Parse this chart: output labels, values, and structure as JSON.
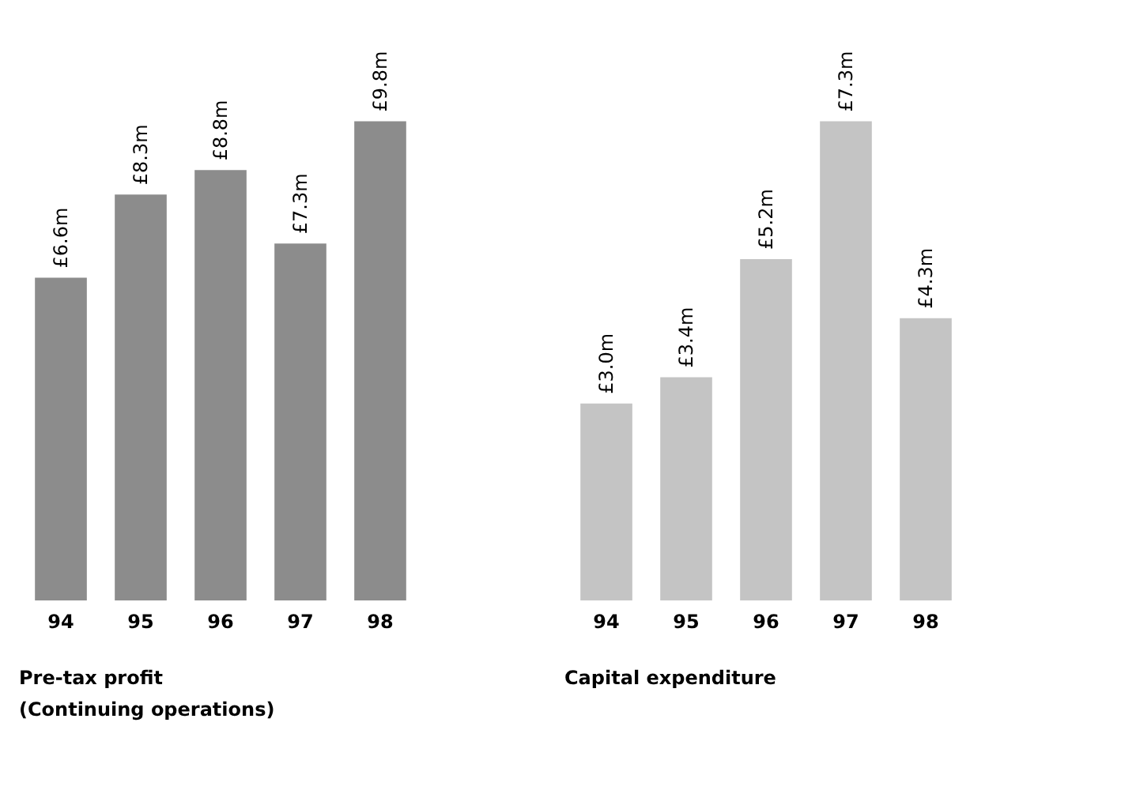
{
  "chart_data": [
    {
      "type": "bar",
      "title": "Pre-tax profit",
      "subtitle": "(Continuing operations)",
      "categories": [
        "94",
        "95",
        "96",
        "97",
        "98"
      ],
      "values": [
        6.6,
        8.3,
        8.8,
        7.3,
        9.8
      ],
      "value_labels": [
        "£6.6m",
        "£8.3m",
        "£8.8m",
        "£7.3m",
        "£9.8m"
      ],
      "color": "#8c8c8c"
    },
    {
      "type": "bar",
      "title": "Capital expenditure",
      "categories": [
        "94",
        "95",
        "96",
        "97",
        "98"
      ],
      "values": [
        3.0,
        3.4,
        5.2,
        7.3,
        4.3
      ],
      "value_labels": [
        "£3.0m",
        "£3.4m",
        "£5.2m",
        "£7.3m",
        "£4.3m"
      ],
      "color": "#c4c4c4"
    }
  ]
}
